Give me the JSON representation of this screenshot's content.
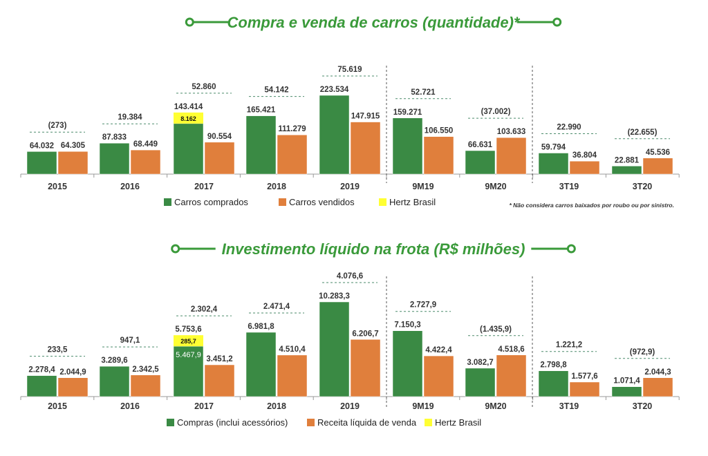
{
  "colors": {
    "green": "#3a8a44",
    "orange": "#e07f3c",
    "yellow": "#ffff33",
    "title": "#3a9a3a",
    "text": "#333333",
    "dash": "#4a8a6a"
  },
  "chart_data": [
    {
      "type": "bar",
      "title": "Compra e venda de carros (quantidade)*",
      "categories": [
        "2015",
        "2016",
        "2017",
        "2018",
        "2019",
        "9M19",
        "9M20",
        "3T19",
        "3T20"
      ],
      "series": [
        {
          "name": "Carros comprados",
          "values": [
            64032,
            87833,
            143414,
            165421,
            223534,
            159271,
            66631,
            59794,
            22881
          ],
          "labels": [
            "64.032",
            "87.833",
            "143.414",
            "165.421",
            "223.534",
            "159.271",
            "66.631",
            "59.794",
            "22.881"
          ]
        },
        {
          "name": "Carros vendidos",
          "values": [
            64305,
            68449,
            90554,
            111279,
            147915,
            106550,
            103633,
            36804,
            45536
          ],
          "labels": [
            "64.305",
            "68.449",
            "90.554",
            "111.279",
            "147.915",
            "106.550",
            "103.633",
            "36.804",
            "45.536"
          ]
        },
        {
          "name": "Hertz Brasil",
          "values": [
            null,
            null,
            8162,
            null,
            null,
            null,
            null,
            null,
            null
          ],
          "labels": [
            "",
            "",
            "8.162",
            "",
            "",
            "",
            "",
            "",
            ""
          ]
        }
      ],
      "differences": [
        "(273)",
        "19.384",
        "52.860",
        "54.142",
        "75.619",
        "52.721",
        "(37.002)",
        "22.990",
        "(22.655)"
      ],
      "footnote": "* Não considera  carros baixados por roubo ou por sinistro.",
      "green_label_inside": [
        false,
        false,
        false,
        false,
        false,
        false,
        false,
        false,
        false
      ]
    },
    {
      "type": "bar",
      "title": "Investimento líquido na frota (R$ milhões)",
      "categories": [
        "2015",
        "2016",
        "2017",
        "2018",
        "2019",
        "9M19",
        "9M20",
        "3T19",
        "3T20"
      ],
      "series": [
        {
          "name": "Compras  (inclui acessórios)",
          "values": [
            2278.4,
            3289.6,
            5467.9,
            6981.8,
            10283.3,
            7150.3,
            3082.7,
            2798.8,
            1071.4
          ],
          "labels": [
            "2.278,4",
            "3.289,6",
            "5.467,9",
            "6.981,8",
            "10.283,3",
            "7.150,3",
            "3.082,7",
            "2.798,8",
            "1.071,4"
          ]
        },
        {
          "name": "Receita líquida de venda",
          "values": [
            2044.9,
            2342.5,
            3451.2,
            4510.4,
            6206.7,
            4422.4,
            4518.6,
            1577.6,
            2044.3
          ],
          "labels": [
            "2.044,9",
            "2.342,5",
            "3.451,2",
            "4.510,4",
            "6.206,7",
            "4.422,4",
            "4.518,6",
            "1.577,6",
            "2.044,3"
          ]
        },
        {
          "name": "Hertz Brasil",
          "values": [
            null,
            null,
            285.7,
            null,
            null,
            null,
            null,
            null,
            null
          ],
          "labels": [
            "",
            "",
            "285,7",
            "",
            "",
            "",
            "",
            "",
            ""
          ]
        }
      ],
      "totals": [
        "",
        "",
        "5.753,6",
        "",
        "",
        "",
        "",
        "",
        ""
      ],
      "differences": [
        "233,5",
        "947,1",
        "2.302,4",
        "2.471,4",
        "4.076,6",
        "2.727,9",
        "(1.435,9)",
        "1.221,2",
        "(972,9)"
      ]
    }
  ]
}
